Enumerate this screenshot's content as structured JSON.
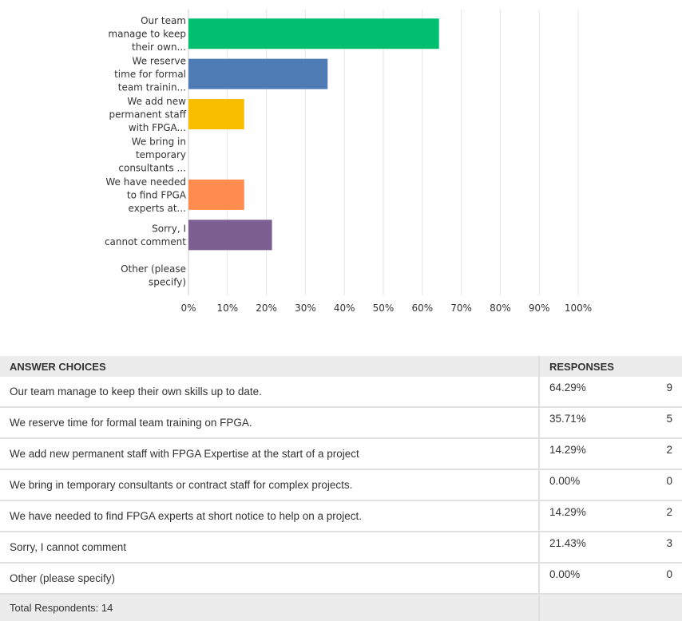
{
  "chart_data": {
    "type": "bar",
    "orientation": "horizontal",
    "categories": [
      [
        "Our team",
        "manage to keep",
        "their own..."
      ],
      [
        "We reserve",
        "time for formal",
        "team trainin..."
      ],
      [
        "We add new",
        "permanent staff",
        "with FPGA..."
      ],
      [
        "We bring in",
        "temporary",
        "consultants ..."
      ],
      [
        "We have needed",
        "to find FPGA",
        "experts at..."
      ],
      [
        "Sorry, I",
        "cannot comment"
      ],
      [
        "Other (please",
        "specify)"
      ]
    ],
    "values": [
      64.29,
      35.71,
      14.29,
      0,
      14.29,
      21.43,
      0
    ],
    "colors": [
      "#00bf6f",
      "#507cb6",
      "#f9be00",
      "#6bc8cd",
      "#ff8b4f",
      "#7d5e90",
      "#d25f90"
    ],
    "xlim": [
      0,
      100
    ],
    "xticks": [
      "0%",
      "10%",
      "20%",
      "30%",
      "40%",
      "50%",
      "60%",
      "70%",
      "80%",
      "90%",
      "100%"
    ],
    "grid": true
  },
  "table": {
    "headers": {
      "choices": "ANSWER CHOICES",
      "responses": "RESPONSES"
    },
    "rows": [
      {
        "choice": "Our team manage to keep their own skills up to date.",
        "pct": "64.29%",
        "count": "9"
      },
      {
        "choice": "We reserve time for formal team training on FPGA.",
        "pct": "35.71%",
        "count": "5"
      },
      {
        "choice": "We add new permanent staff with FPGA Expertise at the start of a project",
        "pct": "14.29%",
        "count": "2"
      },
      {
        "choice": "We bring in temporary consultants or contract staff for complex projects.",
        "pct": "0.00%",
        "count": "0"
      },
      {
        "choice": "We have needed to find FPGA experts at short notice to help on a project.",
        "pct": "14.29%",
        "count": "2"
      },
      {
        "choice": "Sorry, I cannot comment",
        "pct": "21.43%",
        "count": "3"
      },
      {
        "choice": "Other (please specify)",
        "pct": "0.00%",
        "count": "0"
      }
    ],
    "total": "Total Respondents: 14"
  }
}
